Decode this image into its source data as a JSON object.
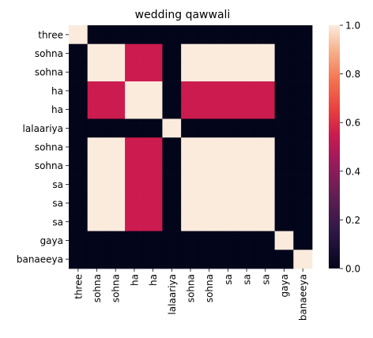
{
  "chart_data": {
    "type": "heatmap",
    "title": "wedding qawwali",
    "xlabel": "",
    "ylabel": "",
    "row_labels": [
      "three",
      "sohna",
      "sohna",
      "ha",
      "ha",
      "lalaariya",
      "sohna",
      "sohna",
      "sa",
      "sa",
      "sa",
      "gaya",
      "banaeeya"
    ],
    "col_labels": [
      "three",
      "sohna",
      "sohna",
      "ha",
      "ha",
      "lalaariya",
      "sohna",
      "sohna",
      "sa",
      "sa",
      "sa",
      "gaya",
      "banaeeya"
    ],
    "values": [
      [
        1,
        0,
        0,
        0,
        0,
        0,
        0,
        0,
        0,
        0,
        0,
        0,
        0
      ],
      [
        0,
        1,
        1,
        0.5,
        0.5,
        0,
        1,
        1,
        1,
        1,
        1,
        0,
        0
      ],
      [
        0,
        1,
        1,
        0.5,
        0.5,
        0,
        1,
        1,
        1,
        1,
        1,
        0,
        0
      ],
      [
        0,
        0.5,
        0.5,
        1,
        1,
        0,
        0.5,
        0.5,
        0.5,
        0.5,
        0.5,
        0,
        0
      ],
      [
        0,
        0.5,
        0.5,
        1,
        1,
        0,
        0.5,
        0.5,
        0.5,
        0.5,
        0.5,
        0,
        0
      ],
      [
        0,
        0,
        0,
        0,
        0,
        1,
        0,
        0,
        0,
        0,
        0,
        0,
        0
      ],
      [
        0,
        1,
        1,
        0.5,
        0.5,
        0,
        1,
        1,
        1,
        1,
        1,
        0,
        0
      ],
      [
        0,
        1,
        1,
        0.5,
        0.5,
        0,
        1,
        1,
        1,
        1,
        1,
        0,
        0
      ],
      [
        0,
        1,
        1,
        0.5,
        0.5,
        0,
        1,
        1,
        1,
        1,
        1,
        0,
        0
      ],
      [
        0,
        1,
        1,
        0.5,
        0.5,
        0,
        1,
        1,
        1,
        1,
        1,
        0,
        0
      ],
      [
        0,
        1,
        1,
        0.5,
        0.5,
        0,
        1,
        1,
        1,
        1,
        1,
        0,
        0
      ],
      [
        0,
        0,
        0,
        0,
        0,
        0,
        0,
        0,
        0,
        0,
        0,
        1,
        0
      ],
      [
        0,
        0,
        0,
        0,
        0,
        0,
        0,
        0,
        0,
        0,
        0,
        0,
        1
      ]
    ],
    "vmin": 0,
    "vmax": 1,
    "colorbar_ticks": [
      0.0,
      0.2,
      0.4,
      0.6,
      0.8,
      1.0
    ],
    "colorbar_tick_labels": [
      "0.0",
      "0.2",
      "0.4",
      "0.6",
      "0.8",
      "1.0"
    ],
    "colormap": "rocket",
    "grid": false
  }
}
